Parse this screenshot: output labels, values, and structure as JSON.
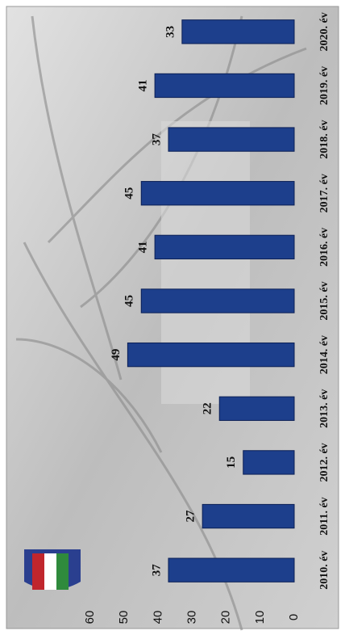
{
  "chart_data": {
    "type": "bar",
    "categories": [
      "2010. év",
      "2011. év",
      "2012. év",
      "2013. év",
      "2014. év",
      "2015. év",
      "2016. év",
      "2017. év",
      "2018. év",
      "2019. év",
      "2020. év"
    ],
    "values": [
      37,
      27,
      15,
      22,
      49,
      45,
      41,
      45,
      37,
      41,
      33
    ],
    "color": "#1d3f8c",
    "ylim": [
      0,
      60
    ],
    "yticks": [
      0,
      10,
      20,
      30,
      40,
      50,
      60
    ],
    "grid": false
  }
}
